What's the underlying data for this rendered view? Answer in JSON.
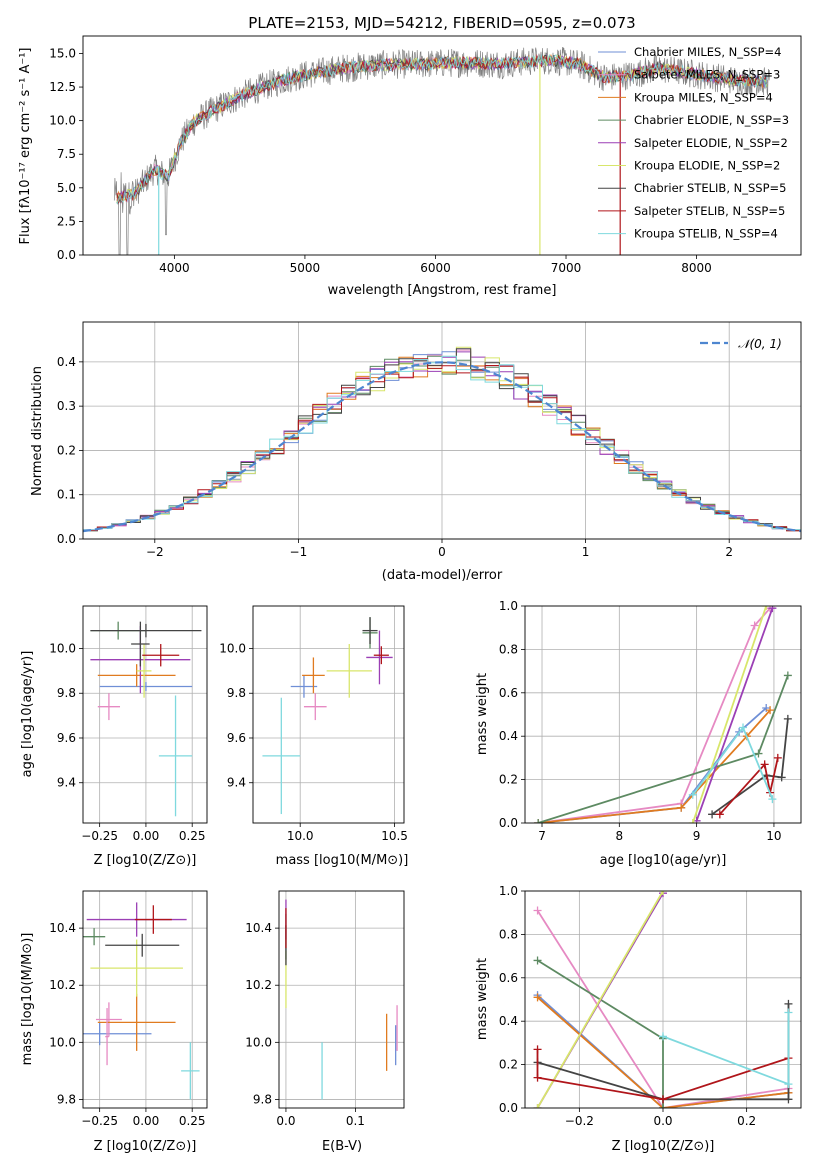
{
  "chart_data": [
    {
      "id": "spectrum",
      "type": "line",
      "title": "PLATE=2153, MJD=54212, FIBERID=0595, z=0.073",
      "xlabel": "wavelength [Angstrom, rest frame]",
      "ylabel": "Flux [fλ10⁻¹⁷ erg cm⁻² s⁻¹ A⁻¹]",
      "xlim": [
        3300,
        8800
      ],
      "ylim": [
        0,
        16.3
      ],
      "xticks": [
        4000,
        5000,
        6000,
        7000,
        8000
      ],
      "yticks": [
        0.0,
        2.5,
        5.0,
        7.5,
        10.0,
        12.5,
        15.0
      ],
      "grid": false,
      "legend_position": "right",
      "continuum_points": {
        "wavelength": [
          3550,
          3700,
          3850,
          3950,
          4050,
          4150,
          4300,
          4500,
          4700,
          4900,
          5100,
          5300,
          5500,
          5700,
          5900,
          6100,
          6300,
          6500,
          6700,
          6900,
          7100,
          7300,
          7500,
          7700,
          7900,
          8100,
          8300,
          8500
        ],
        "flux": [
          4.2,
          4.6,
          6.4,
          5.8,
          8.4,
          9.9,
          10.8,
          11.8,
          12.6,
          13.2,
          13.6,
          13.9,
          14.1,
          14.2,
          14.2,
          14.3,
          14.3,
          14.2,
          14.4,
          14.5,
          14.2,
          13.2,
          13.4,
          13.9,
          13.6,
          13.3,
          13.0,
          12.9
        ]
      },
      "series": [
        {
          "name": "Chabrier MILES, N_SSP=4",
          "color": "#6f8fd6"
        },
        {
          "name": "Salpeter MILES, N_SSP=3",
          "color": "#e68ac3"
        },
        {
          "name": "Kroupa MILES, N_SSP=4",
          "color": "#e07b20"
        },
        {
          "name": "Chabrier ELODIE, N_SSP=3",
          "color": "#5d8a62"
        },
        {
          "name": "Salpeter ELODIE, N_SSP=2",
          "color": "#9b3fb5"
        },
        {
          "name": "Kroupa ELODIE, N_SSP=2",
          "color": "#d8e66b"
        },
        {
          "name": "Chabrier STELIB, N_SSP=5",
          "color": "#444444"
        },
        {
          "name": "Salpeter STELIB, N_SSP=5",
          "color": "#b0151a"
        },
        {
          "name": "Kroupa STELIB, N_SSP=4",
          "color": "#7fd9de"
        }
      ]
    },
    {
      "id": "residuals",
      "type": "line",
      "xlabel": "(data-model)/error",
      "ylabel": "Normed distribution",
      "xlim": [
        -2.5,
        2.5
      ],
      "ylim": [
        0,
        0.49
      ],
      "xticks": [
        -2,
        -1,
        0,
        1,
        2
      ],
      "xtick_labels": [
        "−2",
        "−1",
        "0",
        "1",
        "2"
      ],
      "yticks": [
        0.0,
        0.1,
        0.2,
        0.3,
        0.4
      ],
      "grid": true,
      "legend_position": "top-right",
      "normal_curve": {
        "name": "𝒩(0, 1)",
        "color": "#4e86d0"
      },
      "histogram_bin_width": 0.1
    },
    {
      "id": "age-vs-Z",
      "type": "scatter",
      "xlabel": "Z [log10(Z/Z⊙)]",
      "ylabel": "age [log10(age/yr)]",
      "xlim": [
        -0.34,
        0.33
      ],
      "ylim": [
        9.22,
        10.19
      ],
      "xticks": [
        -0.25,
        0.0,
        0.25
      ],
      "xtick_labels": [
        "−0.25",
        "0.00",
        "0.25"
      ],
      "yticks": [
        9.4,
        9.6,
        9.8,
        10.0
      ],
      "grid": true,
      "points": [
        {
          "x": 0.0,
          "y": 9.83,
          "xerr": 0.25,
          "yerr": 0.02,
          "color": "#6f8fd6"
        },
        {
          "x": -0.2,
          "y": 9.74,
          "xerr": 0.06,
          "yerr": 0.06,
          "color": "#e68ac3"
        },
        {
          "x": -0.05,
          "y": 9.88,
          "xerr": 0.21,
          "yerr": 0.05,
          "color": "#e07b20"
        },
        {
          "x": -0.15,
          "y": 10.08,
          "xerr": 0.15,
          "yerr": 0.04,
          "color": "#5d8a62"
        },
        {
          "x": -0.03,
          "y": 9.95,
          "xerr": 0.27,
          "yerr": 0.15,
          "color": "#9b3fb5"
        },
        {
          "x": -0.01,
          "y": 9.9,
          "xerr": 0.04,
          "yerr": 0.12,
          "color": "#d8e66b"
        },
        {
          "x": 0.0,
          "y": 10.08,
          "xerr": 0.3,
          "yerr": 0.03,
          "color": "#444444"
        },
        {
          "x": 0.08,
          "y": 9.97,
          "xerr": 0.1,
          "yerr": 0.05,
          "color": "#b0151a"
        },
        {
          "x": 0.16,
          "y": 9.52,
          "xerr": 0.09,
          "yerr": 0.27,
          "color": "#7fd9de"
        },
        {
          "x": -0.03,
          "y": 10.02,
          "xerr": 0.05,
          "yerr": 0.1,
          "color": "#444444"
        }
      ]
    },
    {
      "id": "age-vs-mass",
      "type": "scatter",
      "xlabel": "mass [log10(M/M⊙)]",
      "xlim": [
        9.75,
        10.55
      ],
      "ylim": [
        9.22,
        10.19
      ],
      "xticks": [
        10.0,
        10.5
      ],
      "xtick_labels": [
        "10.0",
        "10.5"
      ],
      "yticks": [
        9.4,
        9.6,
        9.8,
        10.0
      ],
      "grid": true,
      "points": [
        {
          "x": 10.02,
          "y": 9.83,
          "xerr": 0.07,
          "yerr": 0.05,
          "color": "#6f8fd6"
        },
        {
          "x": 10.08,
          "y": 9.74,
          "xerr": 0.06,
          "yerr": 0.06,
          "color": "#e68ac3"
        },
        {
          "x": 10.07,
          "y": 9.88,
          "xerr": 0.06,
          "yerr": 0.08,
          "color": "#e07b20"
        },
        {
          "x": 10.37,
          "y": 10.07,
          "xerr": 0.04,
          "yerr": 0.07,
          "color": "#5d8a62"
        },
        {
          "x": 10.42,
          "y": 9.96,
          "xerr": 0.07,
          "yerr": 0.12,
          "color": "#9b3fb5"
        },
        {
          "x": 10.26,
          "y": 9.9,
          "xerr": 0.12,
          "yerr": 0.12,
          "color": "#d8e66b"
        },
        {
          "x": 10.37,
          "y": 10.08,
          "xerr": 0.04,
          "yerr": 0.06,
          "color": "#444444"
        },
        {
          "x": 10.43,
          "y": 9.97,
          "xerr": 0.04,
          "yerr": 0.04,
          "color": "#b0151a"
        },
        {
          "x": 9.9,
          "y": 9.52,
          "xerr": 0.1,
          "yerr": 0.26,
          "color": "#7fd9de"
        }
      ]
    },
    {
      "id": "weight-vs-age",
      "type": "line",
      "xlabel": "age  [log10(age/yr)]",
      "ylabel": "mass weight",
      "xlim": [
        6.78,
        10.35
      ],
      "ylim": [
        0,
        1
      ],
      "xticks": [
        7,
        8,
        9,
        10
      ],
      "yticks": [
        0.0,
        0.2,
        0.4,
        0.6,
        0.8,
        1.0
      ],
      "grid": true,
      "series": [
        {
          "name": "Chabrier MILES",
          "color": "#6f8fd6",
          "x": [
            6.95,
            8.8,
            9.55,
            9.9
          ],
          "y": [
            0.0,
            0.07,
            0.42,
            0.53
          ]
        },
        {
          "name": "Salpeter MILES",
          "color": "#e68ac3",
          "x": [
            6.95,
            8.8,
            9.75,
            9.95
          ],
          "y": [
            0.0,
            0.09,
            0.91,
            0.99
          ]
        },
        {
          "name": "Kroupa MILES",
          "color": "#e07b20",
          "x": [
            6.95,
            8.8,
            9.65,
            9.95
          ],
          "y": [
            0.0,
            0.07,
            0.4,
            0.52
          ]
        },
        {
          "name": "Chabrier ELODIE",
          "color": "#5d8a62",
          "x": [
            6.95,
            9.8,
            10.18
          ],
          "y": [
            0.0,
            0.32,
            0.68
          ]
        },
        {
          "name": "Salpeter ELODIE",
          "color": "#9b3fb5",
          "x": [
            9.0,
            9.98
          ],
          "y": [
            0.01,
            0.99
          ]
        },
        {
          "name": "Kroupa ELODIE",
          "color": "#d8e66b",
          "x": [
            8.95,
            9.9
          ],
          "y": [
            0.0,
            1.0
          ]
        },
        {
          "name": "Chabrier STELIB",
          "color": "#444444",
          "x": [
            9.2,
            9.9,
            10.1,
            10.18
          ],
          "y": [
            0.04,
            0.22,
            0.21,
            0.48
          ]
        },
        {
          "name": "Salpeter STELIB",
          "color": "#b0151a",
          "x": [
            9.3,
            9.88,
            9.95,
            10.05
          ],
          "y": [
            0.04,
            0.27,
            0.14,
            0.3
          ]
        },
        {
          "name": "Kroupa STELIB",
          "color": "#7fd9de",
          "x": [
            8.95,
            9.6,
            9.98
          ],
          "y": [
            0.13,
            0.44,
            0.11
          ]
        }
      ]
    },
    {
      "id": "mass-vs-Z",
      "type": "scatter",
      "xlabel": "Z [log10(Z/Z⊙)]",
      "ylabel": "mass [log10(M/M⊙)]",
      "xlim": [
        -0.34,
        0.33
      ],
      "ylim": [
        9.77,
        10.53
      ],
      "xticks": [
        -0.25,
        0.0,
        0.25
      ],
      "xtick_labels": [
        "−0.25",
        "0.00",
        "0.25"
      ],
      "yticks": [
        9.8,
        10.0,
        10.2,
        10.4
      ],
      "grid": true,
      "points": [
        {
          "x": -0.25,
          "y": 10.03,
          "xerr": 0.28,
          "yerr": 0.04,
          "color": "#6f8fd6"
        },
        {
          "x": -0.2,
          "y": 10.08,
          "xerr": 0.07,
          "yerr": 0.06,
          "color": "#e68ac3"
        },
        {
          "x": -0.05,
          "y": 10.07,
          "xerr": 0.21,
          "yerr": 0.1,
          "color": "#e07b20"
        },
        {
          "x": -0.28,
          "y": 10.37,
          "xerr": 0.06,
          "yerr": 0.03,
          "color": "#5d8a62"
        },
        {
          "x": -0.05,
          "y": 10.43,
          "xerr": 0.27,
          "yerr": 0.06,
          "color": "#9b3fb5"
        },
        {
          "x": -0.05,
          "y": 10.26,
          "xerr": 0.25,
          "yerr": 0.1,
          "color": "#d8e66b"
        },
        {
          "x": -0.02,
          "y": 10.34,
          "xerr": 0.2,
          "yerr": 0.04,
          "color": "#444444"
        },
        {
          "x": 0.04,
          "y": 10.43,
          "xerr": 0.1,
          "yerr": 0.05,
          "color": "#b0151a"
        },
        {
          "x": 0.24,
          "y": 9.9,
          "xerr": 0.05,
          "yerr": 0.1,
          "color": "#7fd9de"
        },
        {
          "x": -0.21,
          "y": 10.02,
          "xerr": 0.01,
          "yerr": 0.1,
          "color": "#e68ac3"
        }
      ]
    },
    {
      "id": "mass-vs-EBV",
      "type": "scatter",
      "xlabel": "E(B-V)",
      "xlim": [
        -0.01,
        0.17
      ],
      "ylim": [
        9.77,
        10.53
      ],
      "xticks": [
        0.0,
        0.1
      ],
      "xtick_labels": [
        "0.0",
        "0.1"
      ],
      "yticks": [
        9.8,
        10.0,
        10.2,
        10.4
      ],
      "grid": true,
      "points": [
        {
          "x": 0.158,
          "y": 9.99,
          "yerr": 0.07,
          "color": "#6f8fd6"
        },
        {
          "x": 0.16,
          "y": 10.05,
          "yerr": 0.08,
          "color": "#e68ac3"
        },
        {
          "x": 0.145,
          "y": 10.0,
          "yerr": 0.1,
          "color": "#e07b20"
        },
        {
          "x": 0.0,
          "y": 10.37,
          "yerr": 0.08,
          "color": "#5d8a62"
        },
        {
          "x": 0.0,
          "y": 10.43,
          "yerr": 0.07,
          "color": "#9b3fb5"
        },
        {
          "x": 0.0,
          "y": 10.22,
          "yerr": 0.1,
          "color": "#d8e66b"
        },
        {
          "x": 0.0,
          "y": 10.34,
          "yerr": 0.07,
          "color": "#444444"
        },
        {
          "x": 0.0,
          "y": 10.4,
          "yerr": 0.07,
          "color": "#b0151a"
        },
        {
          "x": 0.052,
          "y": 9.9,
          "yerr": 0.1,
          "color": "#7fd9de"
        }
      ]
    },
    {
      "id": "weight-vs-Z",
      "type": "line",
      "xlabel": "Z [log10(Z/Z⊙)]",
      "ylabel": "mass weight",
      "xlim": [
        -0.33,
        0.33
      ],
      "ylim": [
        0,
        1
      ],
      "xticks": [
        -0.2,
        0.0,
        0.2
      ],
      "xtick_labels": [
        "−0.2",
        "0.0",
        "0.2"
      ],
      "yticks": [
        0.0,
        0.2,
        0.4,
        0.6,
        0.8,
        1.0
      ],
      "grid": true,
      "series": [
        {
          "name": "Chabrier MILES",
          "color": "#6f8fd6",
          "x": [
            -0.3,
            0.0,
            0.3
          ],
          "y": [
            0.52,
            0.0,
            0.07
          ]
        },
        {
          "name": "Salpeter MILES",
          "color": "#e68ac3",
          "x": [
            -0.3,
            0.0,
            0.3
          ],
          "y": [
            0.91,
            0.0,
            0.09
          ]
        },
        {
          "name": "Kroupa MILES",
          "color": "#e07b20",
          "x": [
            -0.3,
            0.0,
            0.3
          ],
          "y": [
            0.51,
            0.0,
            0.07
          ]
        },
        {
          "name": "Chabrier ELODIE",
          "color": "#5d8a62",
          "x": [
            -0.3,
            0.0,
            0.0
          ],
          "y": [
            0.68,
            0.32,
            0.0
          ]
        },
        {
          "name": "Salpeter ELODIE",
          "color": "#9b3fb5",
          "x": [
            -0.3,
            0.0
          ],
          "y": [
            0.0,
            0.99
          ]
        },
        {
          "name": "Kroupa ELODIE",
          "color": "#d8e66b",
          "x": [
            -0.3,
            0.0
          ],
          "y": [
            0.0,
            1.0
          ]
        },
        {
          "name": "Chabrier STELIB",
          "color": "#444444",
          "x": [
            -0.3,
            0.0,
            0.3,
            0.3
          ],
          "y": [
            0.21,
            0.04,
            0.04,
            0.48
          ]
        },
        {
          "name": "Salpeter STELIB",
          "color": "#b0151a",
          "x": [
            -0.3,
            -0.3,
            0.0,
            0.3
          ],
          "y": [
            0.27,
            0.14,
            0.04,
            0.23
          ]
        },
        {
          "name": "Kroupa STELIB",
          "color": "#7fd9de",
          "x": [
            0.0,
            0.3,
            0.3
          ],
          "y": [
            0.33,
            0.11,
            0.44
          ]
        }
      ]
    }
  ]
}
